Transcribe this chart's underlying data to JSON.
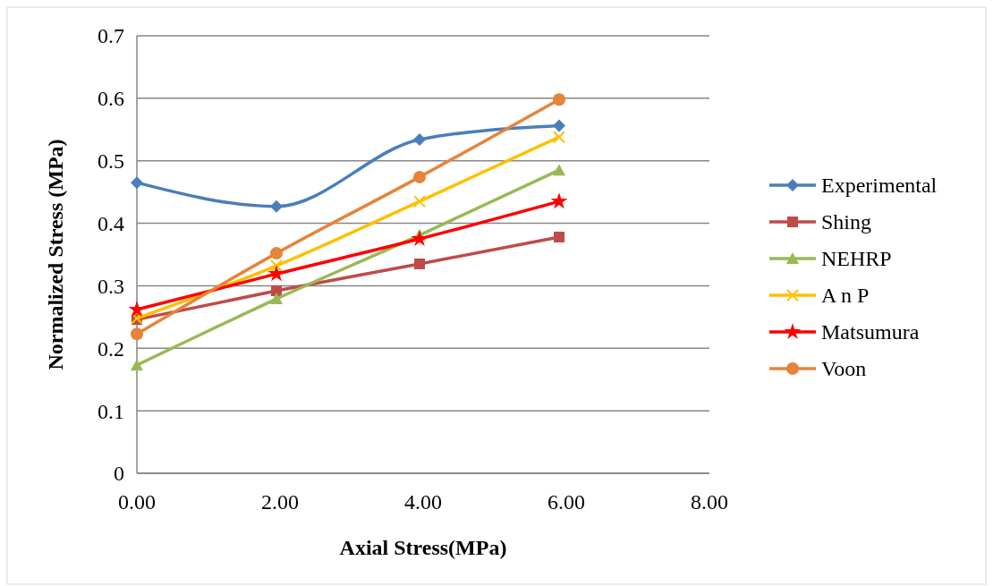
{
  "chart_data": {
    "type": "line",
    "xlabel": "Axial Stress(MPa)",
    "ylabel": "Normalized Stress (MPa)",
    "x": [
      0,
      1.95,
      3.95,
      5.9
    ],
    "series": [
      {
        "name": "Experimental",
        "color": "#4a7ebb",
        "marker": "diamond",
        "values": [
          0.465,
          0.427,
          0.534,
          0.556
        ]
      },
      {
        "name": "Shing",
        "color": "#be4b48",
        "marker": "square",
        "values": [
          0.246,
          0.292,
          0.335,
          0.378
        ]
      },
      {
        "name": "NEHRP",
        "color": "#98b954",
        "marker": "triangle",
        "values": [
          0.173,
          0.279,
          0.381,
          0.485
        ]
      },
      {
        "name": "A n P",
        "color": "#ffc000",
        "marker": "cross",
        "values": [
          0.248,
          0.332,
          0.435,
          0.538
        ]
      },
      {
        "name": "Matsumura",
        "color": "#ff0000",
        "marker": "star",
        "values": [
          0.262,
          0.319,
          0.375,
          0.435
        ]
      },
      {
        "name": "Voon",
        "color": "#e5843a",
        "marker": "circle",
        "values": [
          0.223,
          0.352,
          0.474,
          0.598
        ]
      }
    ],
    "xlim": [
      0,
      8
    ],
    "ylim": [
      0,
      0.7
    ],
    "xticks": [
      {
        "value": 0,
        "label": "0.00"
      },
      {
        "value": 2,
        "label": "2.00"
      },
      {
        "value": 4,
        "label": "4.00"
      },
      {
        "value": 6,
        "label": "6.00"
      },
      {
        "value": 8,
        "label": "8.00"
      }
    ],
    "yticks": [
      0,
      0.1,
      0.2,
      0.3,
      0.4,
      0.5,
      0.6,
      0.7
    ],
    "grid": "y",
    "legend": "right"
  }
}
